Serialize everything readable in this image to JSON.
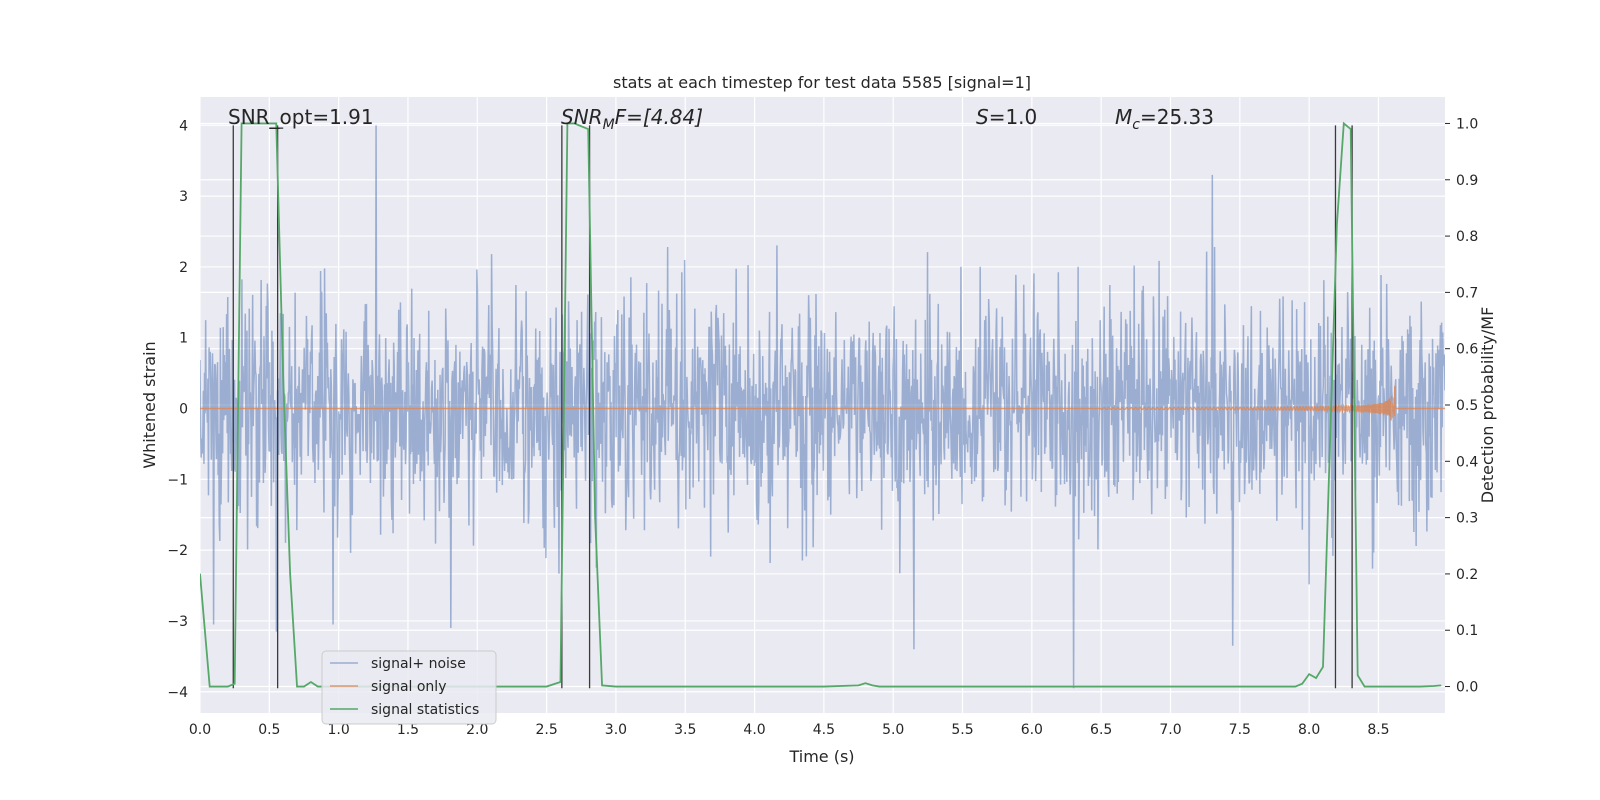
{
  "chart_data": {
    "type": "line",
    "title": "stats at each timestep for test data 5585 [signal=1]",
    "xlabel": "Time (s)",
    "ylabel_left": "Whitened strain",
    "ylabel_right": "Detection probability/MF",
    "xlim": [
      0.0,
      8.98
    ],
    "ylim_left": [
      -4.3,
      4.4
    ],
    "ylim_right": [
      -0.047,
      1.047
    ],
    "x_ticks": [
      0.0,
      0.5,
      1.0,
      1.5,
      2.0,
      2.5,
      3.0,
      3.5,
      4.0,
      4.5,
      5.0,
      5.5,
      6.0,
      6.5,
      7.0,
      7.5,
      8.0,
      8.5
    ],
    "x_tick_labels": [
      "0.0",
      "0.5",
      "1.0",
      "1.5",
      "2.0",
      "2.5",
      "3.0",
      "3.5",
      "4.0",
      "4.5",
      "5.0",
      "5.5",
      "6.0",
      "6.5",
      "7.0",
      "7.5",
      "8.0",
      "8.5"
    ],
    "y_left_ticks": [
      -4,
      -3,
      -2,
      -1,
      0,
      1,
      2,
      3,
      4
    ],
    "y_left_tick_labels": [
      "−4",
      "−3",
      "−2",
      "−1",
      "0",
      "1",
      "2",
      "3",
      "4"
    ],
    "y_right_ticks": [
      0.0,
      0.1,
      0.2,
      0.3,
      0.4,
      0.5,
      0.6,
      0.7,
      0.8,
      0.9,
      1.0
    ],
    "y_right_tick_labels": [
      "0.0",
      "0.1",
      "0.2",
      "0.3",
      "0.4",
      "0.5",
      "0.6",
      "0.7",
      "0.8",
      "0.9",
      "1.0"
    ],
    "annotations": {
      "snr_opt": "SNR_opt=1.91",
      "snr_mf_sym": "SNR",
      "snr_mf_sub": "M",
      "snr_mf_rest": "F=[4.84]",
      "s_sym": "S",
      "s_rest": "=1.0",
      "mc_sym": "M",
      "mc_sub": "c",
      "mc_rest": "=25.33"
    },
    "series": [
      {
        "name": "signal+ noise",
        "color": "#4c72b0",
        "axis": "left",
        "note": "whitened noisy strain, approx. normal noise with sigma ~0.8, t from 0 to 8.98 s, range about -3.9 to 4.0",
        "t_start": 0.0,
        "t_end": 8.98,
        "n_samples": 2200,
        "noise_sigma": 0.8,
        "outlier_spikes": [
          {
            "t": 1.27,
            "v": 4.0
          },
          {
            "t": 0.55,
            "v": -3.15
          },
          {
            "t": 0.96,
            "v": -3.05
          },
          {
            "t": 1.81,
            "v": -3.1
          },
          {
            "t": 5.15,
            "v": -3.4
          },
          {
            "t": 6.3,
            "v": -3.95
          },
          {
            "t": 7.3,
            "v": 3.3
          },
          {
            "t": 7.45,
            "v": -3.35
          },
          {
            "t": 0.1,
            "v": -3.05
          }
        ]
      },
      {
        "name": "signal only",
        "color": "#dd8452",
        "axis": "left",
        "note": "chirp signal, negligible amplitude until ~6.5 s, growing to ~0.45 peak near 8.62 s, then zero",
        "t_onset": 6.5,
        "t_merger": 8.62,
        "peak_amplitude": 0.45
      },
      {
        "name": "signal statistics",
        "color": "#55a868",
        "axis": "right",
        "x": [
          0.0,
          0.07,
          0.15,
          0.2,
          0.25,
          0.3,
          0.4,
          0.5,
          0.55,
          0.6,
          0.65,
          0.7,
          0.75,
          0.8,
          0.85,
          0.9,
          1.0,
          1.5,
          2.0,
          2.5,
          2.6,
          2.65,
          2.7,
          2.8,
          2.85,
          2.9,
          3.0,
          3.5,
          4.0,
          4.5,
          4.75,
          4.8,
          4.85,
          4.9,
          5.5,
          6.0,
          6.5,
          7.0,
          7.5,
          7.9,
          7.95,
          8.0,
          8.05,
          8.1,
          8.2,
          8.25,
          8.3,
          8.35,
          8.4,
          8.5,
          8.6,
          8.7,
          8.8,
          8.9,
          8.95
        ],
        "y": [
          0.2,
          0.0,
          0.0,
          0.0,
          0.005,
          1.0,
          1.0,
          1.0,
          1.0,
          0.55,
          0.2,
          0.0,
          0.0,
          0.008,
          0.0,
          0.0,
          0.0,
          0.0,
          0.0,
          0.0,
          0.008,
          1.0,
          1.0,
          0.99,
          0.3,
          0.002,
          0.0,
          0.0,
          0.0,
          0.0,
          0.002,
          0.006,
          0.002,
          0.0,
          0.0,
          0.0,
          0.0,
          0.0,
          0.0,
          0.0,
          0.005,
          0.022,
          0.015,
          0.035,
          0.82,
          1.0,
          0.99,
          0.02,
          0.0,
          0.0,
          0.0,
          0.0,
          0.0,
          0.001,
          0.002
        ]
      }
    ],
    "vertical_markers": [
      0.24,
      0.56,
      2.61,
      2.81,
      8.19,
      8.31
    ],
    "legend": {
      "location": "lower-left",
      "entries": [
        {
          "label": "signal+ noise",
          "color": "#4c72b0"
        },
        {
          "label": "signal only",
          "color": "#dd8452"
        },
        {
          "label": "signal statistics",
          "color": "#55a868"
        }
      ]
    },
    "grid": true
  }
}
